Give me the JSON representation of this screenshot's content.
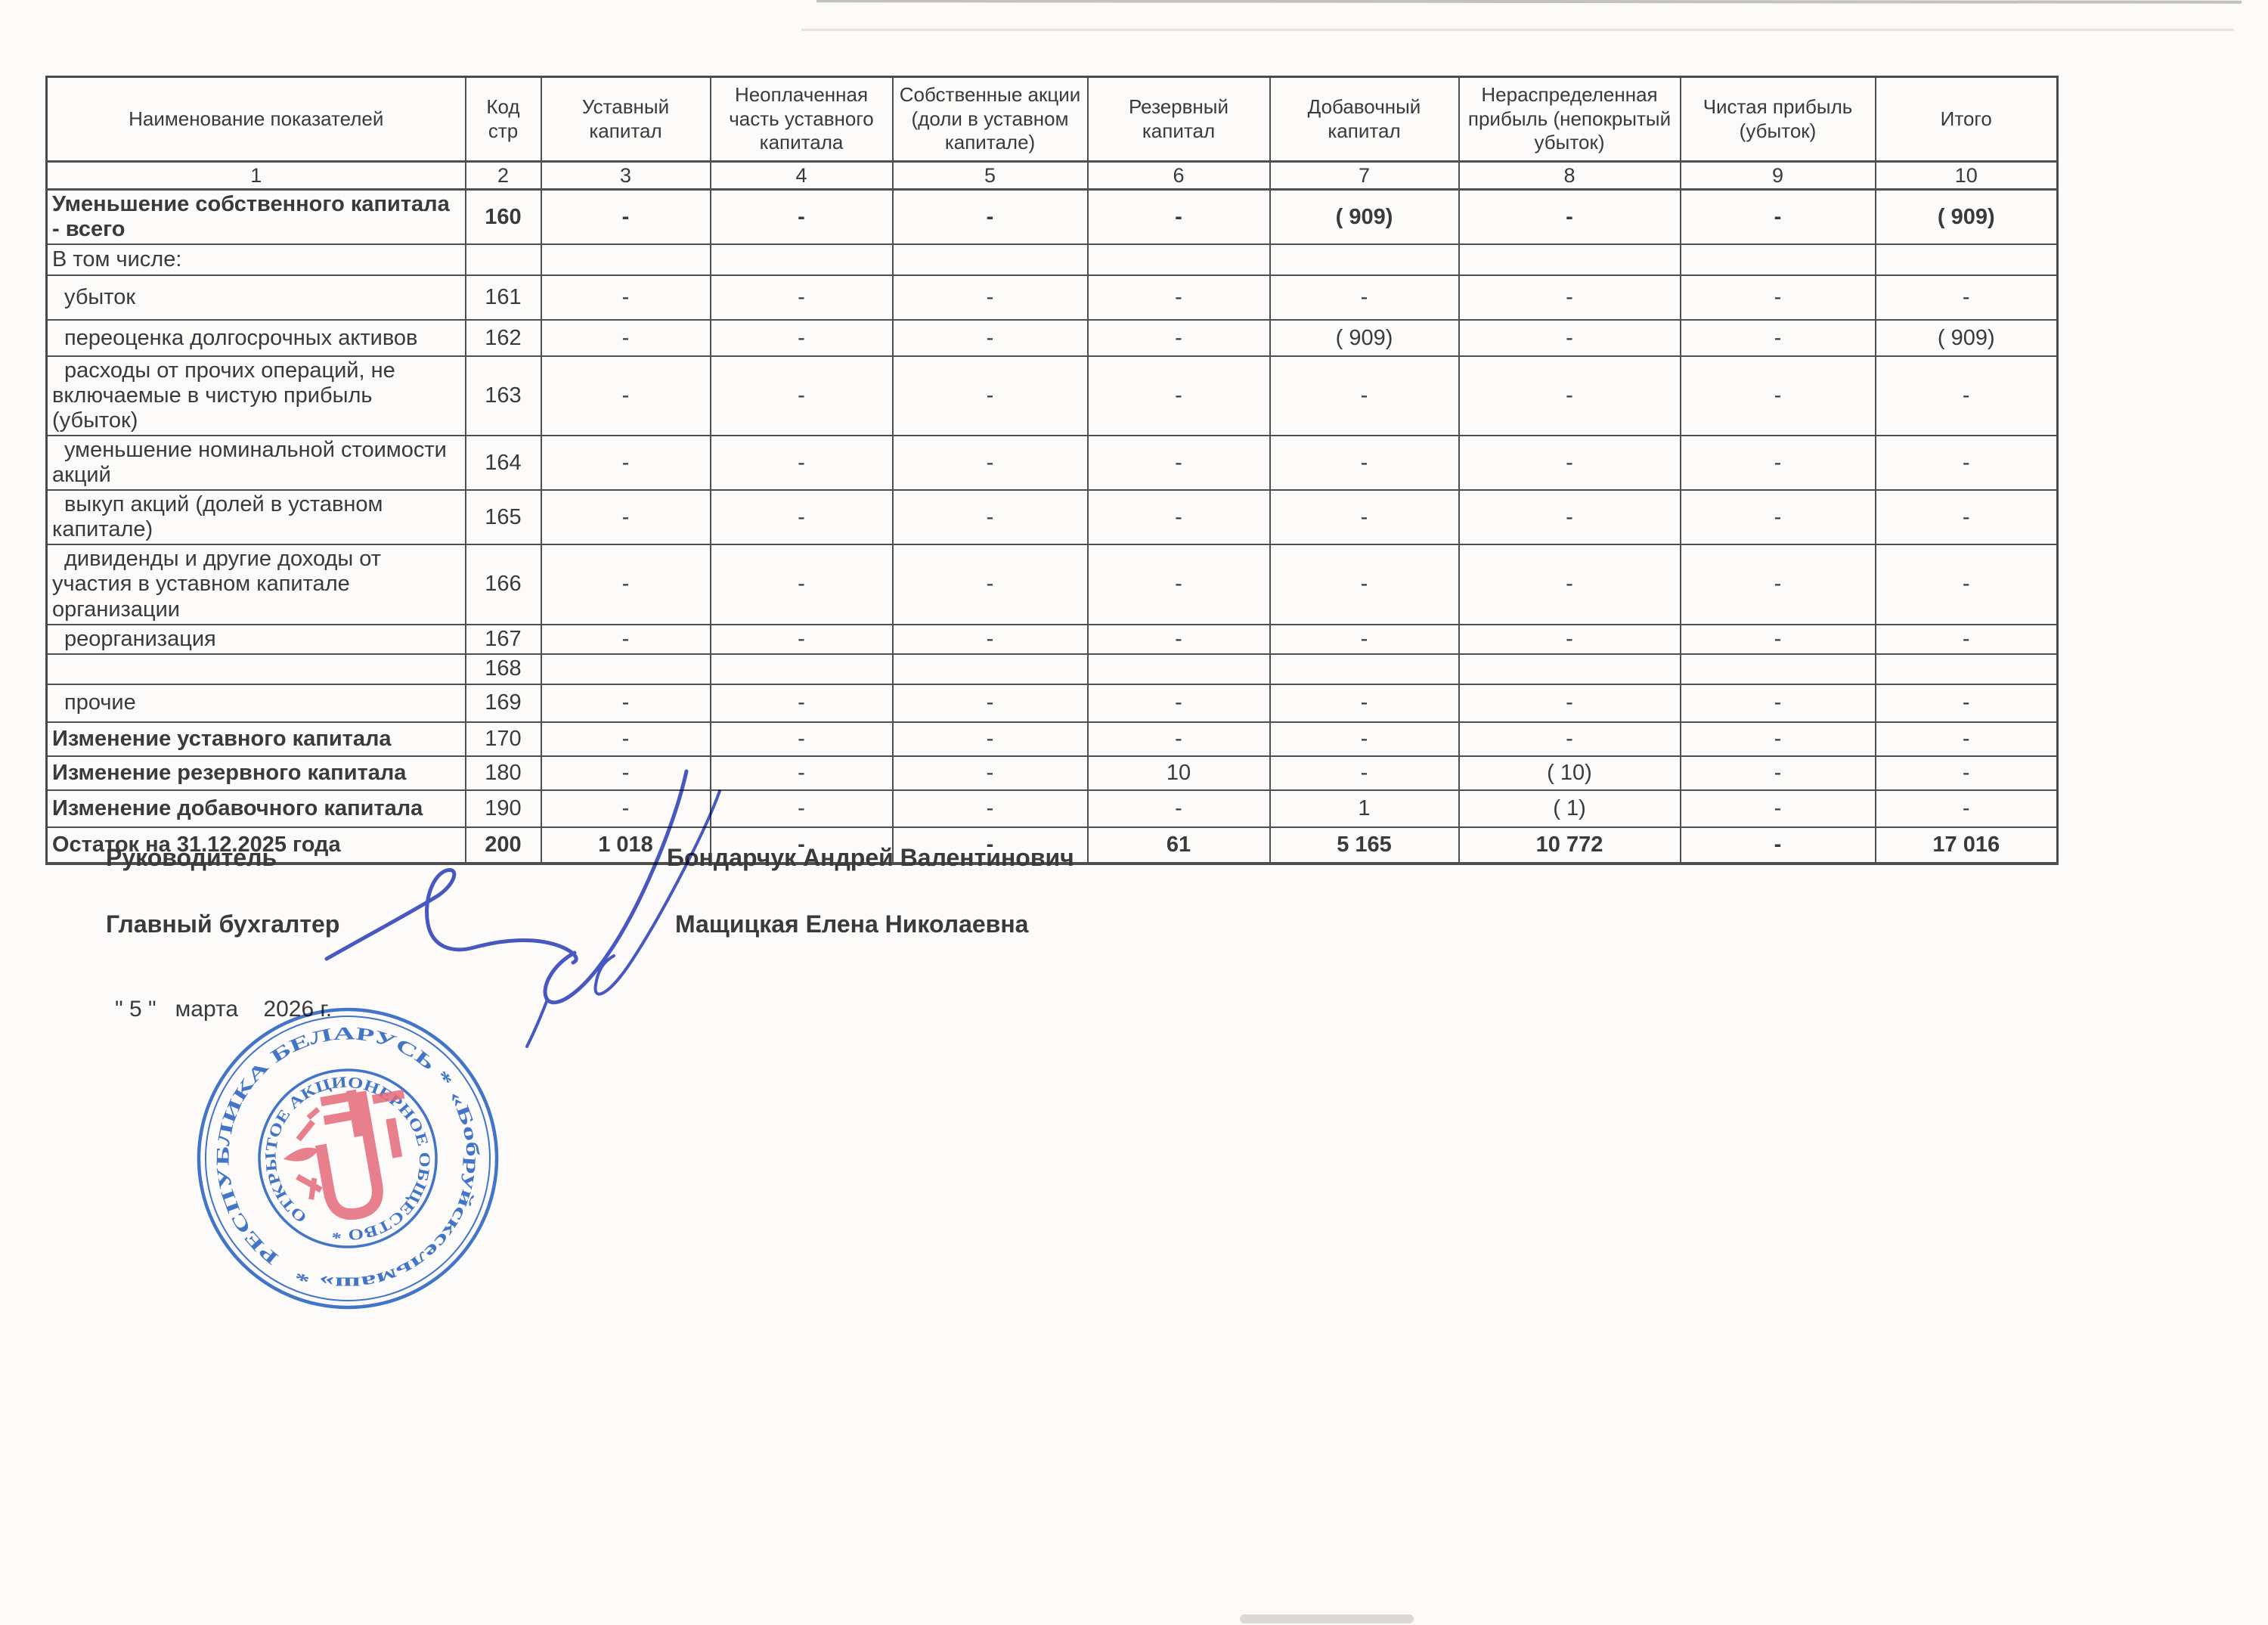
{
  "table": {
    "columns": [
      {
        "label": "Наименование показателей",
        "num": "1"
      },
      {
        "label": "Код\nстр",
        "num": "2"
      },
      {
        "label": "Уставный капитал",
        "num": "3"
      },
      {
        "label": "Неоплаченная часть уставного капитала",
        "num": "4"
      },
      {
        "label": "Собственные акции (доли в уставном капитале)",
        "num": "5"
      },
      {
        "label": "Резервный капитал",
        "num": "6"
      },
      {
        "label": "Добавочный капитал",
        "num": "7"
      },
      {
        "label": "Нераспределенная прибыль (непокрытый убыток)",
        "num": "8"
      },
      {
        "label": "Чистая прибыль (убыток)",
        "num": "9"
      },
      {
        "label": "Итого",
        "num": "10"
      }
    ],
    "rows": [
      {
        "label": "Уменьшение собственного капитала - всего",
        "code": "160",
        "values": [
          "-",
          "-",
          "-",
          "-",
          "( 909)",
          "-",
          "-",
          "( 909)"
        ],
        "labelBold": true,
        "codeBold": true,
        "valuesBold": true,
        "indent": false
      },
      {
        "label": "В том числе:",
        "code": "",
        "values": [
          "",
          "",
          "",
          "",
          "",
          "",
          "",
          ""
        ],
        "labelBold": false,
        "codeBold": false,
        "valuesBold": false,
        "indent": false
      },
      {
        "label": "убыток",
        "code": "161",
        "values": [
          "-",
          "-",
          "-",
          "-",
          "-",
          "-",
          "-",
          "-"
        ],
        "labelBold": false,
        "codeBold": false,
        "valuesBold": false,
        "indent": true
      },
      {
        "label": "переоценка долгосрочных активов",
        "code": "162",
        "values": [
          "-",
          "-",
          "-",
          "-",
          "( 909)",
          "-",
          "-",
          "( 909)"
        ],
        "labelBold": false,
        "codeBold": false,
        "valuesBold": false,
        "indent": true
      },
      {
        "label": "расходы от прочих операций, не включаемые в чистую прибыль (убыток)",
        "code": "163",
        "values": [
          "-",
          "-",
          "-",
          "-",
          "-",
          "-",
          "-",
          "-"
        ],
        "labelBold": false,
        "codeBold": false,
        "valuesBold": false,
        "indent": true
      },
      {
        "label": "уменьшение номинальной стоимости акций",
        "code": "164",
        "values": [
          "-",
          "-",
          "-",
          "-",
          "-",
          "-",
          "-",
          "-"
        ],
        "labelBold": false,
        "codeBold": false,
        "valuesBold": false,
        "indent": true
      },
      {
        "label": "выкуп акций (долей в уставном капитале)",
        "code": "165",
        "values": [
          "-",
          "-",
          "-",
          "-",
          "-",
          "-",
          "-",
          "-"
        ],
        "labelBold": false,
        "codeBold": false,
        "valuesBold": false,
        "indent": true
      },
      {
        "label": "дивиденды и другие доходы от участия в уставном капитале организации",
        "code": "166",
        "values": [
          "-",
          "-",
          "-",
          "-",
          "-",
          "-",
          "-",
          "-"
        ],
        "labelBold": false,
        "codeBold": false,
        "valuesBold": false,
        "indent": true
      },
      {
        "label": "реорганизация",
        "code": "167",
        "values": [
          "-",
          "-",
          "-",
          "-",
          "-",
          "-",
          "-",
          "-"
        ],
        "labelBold": false,
        "codeBold": false,
        "valuesBold": false,
        "indent": true
      },
      {
        "label": "",
        "code": "168",
        "values": [
          "",
          "",
          "",
          "",
          "",
          "",
          "",
          ""
        ],
        "labelBold": false,
        "codeBold": false,
        "valuesBold": false,
        "indent": false
      },
      {
        "label": "прочие",
        "code": "169",
        "values": [
          "-",
          "-",
          "-",
          "-",
          "-",
          "-",
          "-",
          "-"
        ],
        "labelBold": false,
        "codeBold": false,
        "valuesBold": false,
        "indent": true
      },
      {
        "label": "Изменение уставного капитала",
        "code": "170",
        "values": [
          "-",
          "-",
          "-",
          "-",
          "-",
          "-",
          "-",
          "-"
        ],
        "labelBold": true,
        "codeBold": false,
        "valuesBold": false,
        "indent": false
      },
      {
        "label": "Изменение резервного капитала",
        "code": "180",
        "values": [
          "-",
          "-",
          "-",
          "10",
          "-",
          "( 10)",
          "-",
          "-"
        ],
        "labelBold": true,
        "codeBold": false,
        "valuesBold": false,
        "indent": false
      },
      {
        "label": "Изменение добавочного капитала",
        "code": "190",
        "values": [
          "-",
          "-",
          "-",
          "-",
          "1",
          "( 1)",
          "-",
          "-"
        ],
        "labelBold": true,
        "codeBold": false,
        "valuesBold": false,
        "indent": false
      },
      {
        "label": "Остаток на 31.12.2025 года",
        "code": "200",
        "values": [
          "1 018",
          "-",
          "-",
          "61",
          "5 165",
          "10 772",
          "-",
          "17 016"
        ],
        "labelBold": true,
        "codeBold": true,
        "valuesBold": true,
        "indent": false
      }
    ]
  },
  "officials": [
    {
      "title": "Руководитель",
      "name": "Бондарчук Андрей Валентинович"
    },
    {
      "title": "Главный бухгалтер",
      "name": "Мащицкая Елена Николаевна"
    }
  ],
  "date_line": "\" 5 \"   марта    2026 г.",
  "stamp": {
    "outer_ring": "РЕСПУБЛИКА БЕЛАРУСЬ * «Бобруйсксельмаш» *",
    "inner_ring": "ОТКРЫТОЕ АКЦИОНЕРНОЕ ОБЩЕСТВО *"
  },
  "colors": {
    "stamp_blue": "#2a64c5",
    "stamp_red": "#e4566c",
    "signature_blue": "#4859c5",
    "ink": "#3a3a3a",
    "paper": "#fcfbf9"
  }
}
